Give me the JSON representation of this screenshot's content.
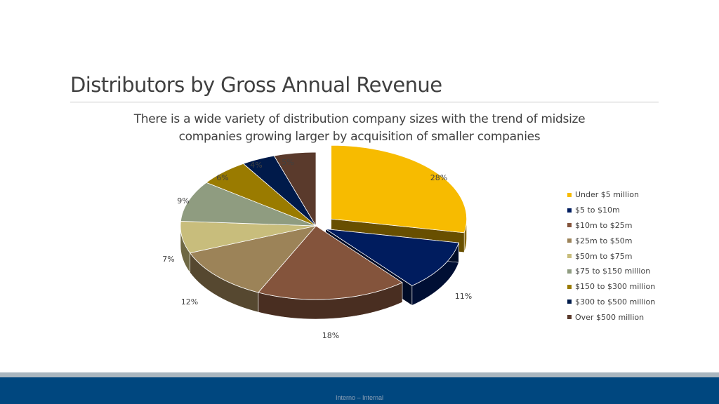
{
  "slide": {
    "title": "Distributors by Gross Annual Revenue",
    "subtitle_line1": "There is a wide variety of distribution company sizes with the trend of midsize",
    "subtitle_line2": "companies growing larger by acquisition of smaller companies",
    "footer_label": "Interno – Internal"
  },
  "chart_data": {
    "type": "pie",
    "style": "3d-exploded",
    "legend_position": "right",
    "slices": [
      {
        "label": "Under $5 million",
        "value": 28,
        "display": "28%",
        "color": "#f7bb00"
      },
      {
        "label": "$5 to $10m",
        "value": 11,
        "display": "11%",
        "color": "#001c5e"
      },
      {
        "label": "$10m to $25m",
        "value": 18,
        "display": "18%",
        "color": "#84543c"
      },
      {
        "label": "$25m to $50m",
        "value": 12,
        "display": "12%",
        "color": "#9c8358"
      },
      {
        "label": "$50m to $75m",
        "value": 7,
        "display": "7%",
        "color": "#c8bd7c"
      },
      {
        "label": "$75 to $150 million",
        "value": 9,
        "display": "9%",
        "color": "#8f9c80"
      },
      {
        "label": "$150 to $300 million",
        "value": 6,
        "display": "6%",
        "color": "#9a7b00"
      },
      {
        "label": "$300 to $500 million",
        "value": 4,
        "display": "4%",
        "color": "#001a4a"
      },
      {
        "label": "Over $500 million",
        "value": 5,
        "display": "5%",
        "color": "#5a3a2c"
      }
    ]
  }
}
